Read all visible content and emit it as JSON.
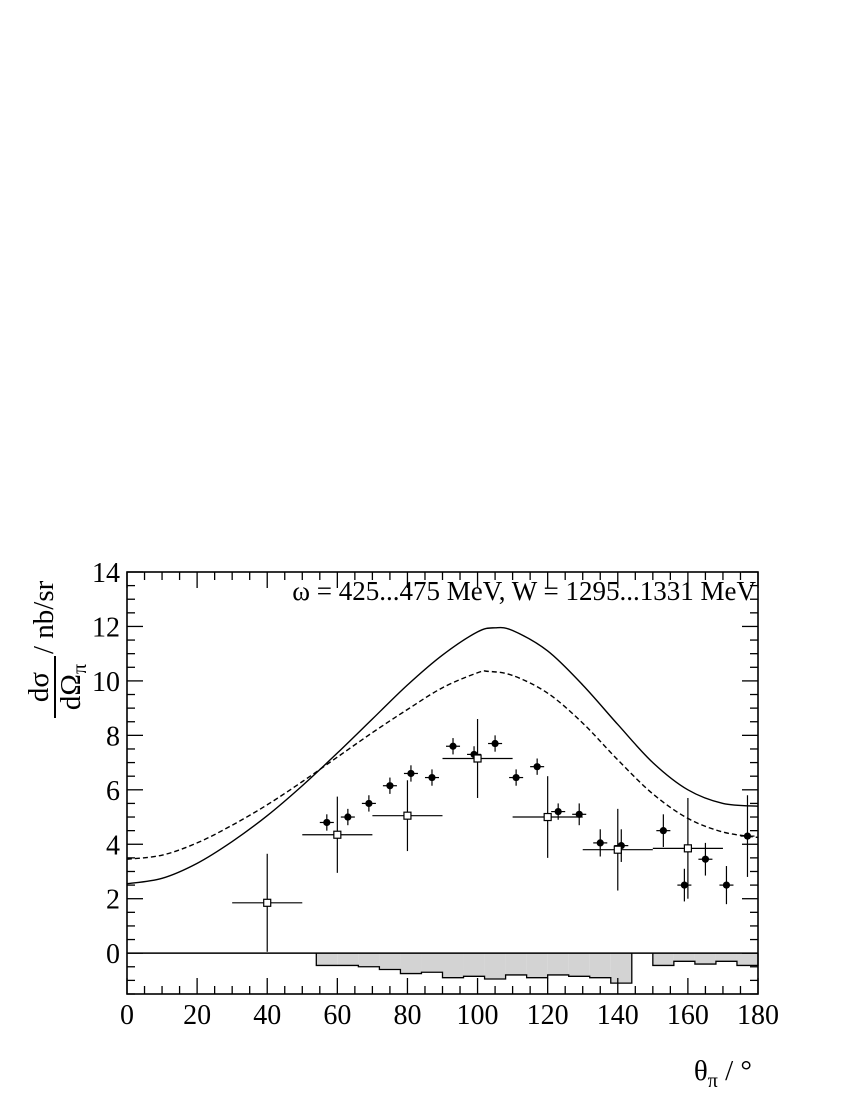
{
  "chart_data": {
    "type": "scatter",
    "title": "",
    "annotation": "ω = 425...475 MeV, W = 1295...1331 MeV",
    "xlabel": {
      "main": "θ",
      "sub": "π",
      "unit": " / °"
    },
    "ylabel": {
      "num": "dσ",
      "den": "dΩ",
      "den_sub": "π",
      "unit": " / nb/sr"
    },
    "xlim": [
      0,
      180
    ],
    "ylim": [
      -1.5,
      14
    ],
    "x_ticks": [
      0,
      20,
      40,
      60,
      80,
      100,
      120,
      140,
      160,
      180
    ],
    "y_ticks": [
      0,
      2,
      4,
      6,
      8,
      10,
      12,
      14
    ],
    "x_tick_labels": [
      "0",
      "20",
      "40",
      "60",
      "80",
      "100",
      "120",
      "140",
      "160",
      "180"
    ],
    "y_tick_labels": [
      "0",
      "2",
      "4",
      "6",
      "8",
      "10",
      "12",
      "14"
    ],
    "grid": false,
    "series": [
      {
        "marker": "filled-circle",
        "points": [
          {
            "x": 57,
            "y": 4.8,
            "xerr": 2,
            "yerr": 0.3
          },
          {
            "x": 63,
            "y": 5.0,
            "xerr": 2,
            "yerr": 0.3
          },
          {
            "x": 69,
            "y": 5.5,
            "xerr": 2,
            "yerr": 0.3
          },
          {
            "x": 75,
            "y": 6.15,
            "xerr": 2,
            "yerr": 0.3
          },
          {
            "x": 81,
            "y": 6.6,
            "xerr": 2,
            "yerr": 0.3
          },
          {
            "x": 87,
            "y": 6.45,
            "xerr": 2,
            "yerr": 0.3
          },
          {
            "x": 93,
            "y": 7.6,
            "xerr": 2,
            "yerr": 0.3
          },
          {
            "x": 99,
            "y": 7.3,
            "xerr": 2,
            "yerr": 0.3
          },
          {
            "x": 105,
            "y": 7.7,
            "xerr": 2,
            "yerr": 0.3
          },
          {
            "x": 111,
            "y": 6.45,
            "xerr": 2,
            "yerr": 0.3
          },
          {
            "x": 117,
            "y": 6.85,
            "xerr": 2,
            "yerr": 0.3
          },
          {
            "x": 123,
            "y": 5.2,
            "xerr": 2,
            "yerr": 0.3
          },
          {
            "x": 129,
            "y": 5.1,
            "xerr": 2,
            "yerr": 0.4
          },
          {
            "x": 135,
            "y": 4.05,
            "xerr": 2,
            "yerr": 0.5
          },
          {
            "x": 141,
            "y": 3.95,
            "xerr": 2,
            "yerr": 0.6
          },
          {
            "x": 153,
            "y": 4.5,
            "xerr": 2,
            "yerr": 0.6
          },
          {
            "x": 159,
            "y": 2.5,
            "xerr": 2,
            "yerr": 0.6
          },
          {
            "x": 165,
            "y": 3.45,
            "xerr": 2,
            "yerr": 0.6
          },
          {
            "x": 171,
            "y": 2.5,
            "xerr": 2,
            "yerr": 0.7
          },
          {
            "x": 177,
            "y": 4.3,
            "xerr": 2,
            "yerr": 1.5
          }
        ]
      },
      {
        "marker": "open-square",
        "points": [
          {
            "x": 40,
            "y": 1.85,
            "xerr": 10,
            "yerr": 1.8
          },
          {
            "x": 60,
            "y": 4.35,
            "xerr": 10,
            "yerr": 1.4
          },
          {
            "x": 80,
            "y": 5.05,
            "xerr": 10,
            "yerr": 1.3
          },
          {
            "x": 100,
            "y": 7.15,
            "xerr": 10,
            "yerr": 1.45
          },
          {
            "x": 120,
            "y": 5.0,
            "xerr": 10,
            "yerr": 1.5
          },
          {
            "x": 140,
            "y": 3.8,
            "xerr": 10,
            "yerr": 1.5
          },
          {
            "x": 160,
            "y": 3.85,
            "xerr": 10,
            "yerr": 1.85
          }
        ]
      }
    ],
    "curves": [
      {
        "style": "solid",
        "x": [
          0,
          10,
          20,
          30,
          40,
          50,
          60,
          70,
          80,
          90,
          100,
          105,
          110,
          120,
          130,
          140,
          150,
          160,
          170,
          180
        ],
        "y": [
          2.55,
          2.75,
          3.3,
          4.1,
          5.05,
          6.15,
          7.35,
          8.6,
          9.85,
          10.95,
          11.8,
          11.95,
          11.85,
          11.1,
          9.85,
          8.4,
          7.0,
          6.0,
          5.5,
          5.4
        ]
      },
      {
        "style": "dashed",
        "x": [
          0,
          10,
          20,
          30,
          40,
          50,
          60,
          70,
          80,
          90,
          100,
          103,
          110,
          120,
          130,
          140,
          150,
          160,
          170,
          180
        ],
        "y": [
          3.45,
          3.6,
          4.05,
          4.7,
          5.45,
          6.3,
          7.2,
          8.1,
          8.95,
          9.75,
          10.3,
          10.35,
          10.2,
          9.55,
          8.45,
          7.1,
          5.85,
          4.95,
          4.45,
          4.25
        ]
      }
    ],
    "systematic_histogram": {
      "style": "gray-filled",
      "color": "#d3d3d3",
      "bins": [
        {
          "x0": 54,
          "x1": 60,
          "y": -0.45
        },
        {
          "x0": 60,
          "x1": 66,
          "y": -0.45
        },
        {
          "x0": 66,
          "x1": 72,
          "y": -0.5
        },
        {
          "x0": 72,
          "x1": 78,
          "y": -0.6
        },
        {
          "x0": 78,
          "x1": 84,
          "y": -0.75
        },
        {
          "x0": 84,
          "x1": 90,
          "y": -0.7
        },
        {
          "x0": 90,
          "x1": 96,
          "y": -0.9
        },
        {
          "x0": 96,
          "x1": 102,
          "y": -0.85
        },
        {
          "x0": 102,
          "x1": 108,
          "y": -0.95
        },
        {
          "x0": 108,
          "x1": 114,
          "y": -0.8
        },
        {
          "x0": 114,
          "x1": 120,
          "y": -0.9
        },
        {
          "x0": 120,
          "x1": 126,
          "y": -0.8
        },
        {
          "x0": 126,
          "x1": 132,
          "y": -0.85
        },
        {
          "x0": 132,
          "x1": 138,
          "y": -0.9
        },
        {
          "x0": 138,
          "x1": 144,
          "y": -1.1
        },
        {
          "x0": 150,
          "x1": 156,
          "y": -0.45
        },
        {
          "x0": 156,
          "x1": 162,
          "y": -0.3
        },
        {
          "x0": 162,
          "x1": 168,
          "y": -0.4
        },
        {
          "x0": 168,
          "x1": 174,
          "y": -0.3
        },
        {
          "x0": 174,
          "x1": 180,
          "y": -0.45
        }
      ]
    }
  }
}
